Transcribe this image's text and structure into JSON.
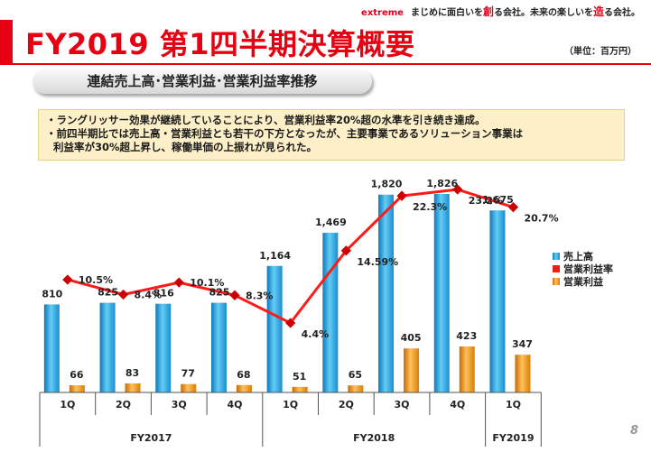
{
  "header": {
    "brand": "extreme",
    "tagline_a": "まじめに面白いを",
    "tagline_a_em": "創",
    "tagline_b": "る会社。未来の楽しいを",
    "tagline_b_em": "造",
    "tagline_c": "る会社。"
  },
  "page": {
    "title": "FY2019 第1四半期決算概要",
    "unit": "（単位：百万円）",
    "subtitle": "連結売上高･営業利益･営業利益率推移",
    "page_number": "8"
  },
  "notes": {
    "line1": "・ラングリッサー効果が継続していることにより、営業利益率20%超の水準を引き続き達成。",
    "line2": "・前四半期比では売上高・営業利益とも若干の下方となったが、主要事業であるソリューション事業は",
    "line3": "利益率が30%超上昇し、稼働単価の上振れが見られた。"
  },
  "colors": {
    "brand_red": "#e60012",
    "sales_bar": "#29a8e0",
    "profit_bar": "#f29a1d",
    "margin_line": "#ff1a1a",
    "margin_marker": "#cc0000"
  },
  "chart_data": {
    "type": "bar",
    "categories": [
      "1Q",
      "2Q",
      "3Q",
      "4Q",
      "1Q",
      "2Q",
      "3Q",
      "4Q",
      "1Q"
    ],
    "groups": [
      {
        "label": "FY2017",
        "count": 4
      },
      {
        "label": "FY2018",
        "count": 4
      },
      {
        "label": "FY2019",
        "count": 1
      }
    ],
    "series": [
      {
        "name": "売上高",
        "type": "bar",
        "values": [
          810,
          825,
          816,
          825,
          1164,
          1469,
          1820,
          1826,
          1675
        ],
        "labels": [
          "810",
          "825",
          "816",
          "825",
          "1,164",
          "1,469",
          "1,820",
          "1,826",
          "1,675"
        ]
      },
      {
        "name": "営業利益率",
        "type": "line",
        "values": [
          10.5,
          8.4,
          10.1,
          8.3,
          4.4,
          14.59,
          22.3,
          23.2,
          20.7
        ],
        "labels": [
          "10.5%",
          "8.4%",
          "10.1%",
          "8.3%",
          "4.4%",
          "14.59%",
          "22.3%",
          "23.2%",
          "20.7%"
        ]
      },
      {
        "name": "営業利益",
        "type": "bar",
        "values": [
          66,
          83,
          77,
          68,
          51,
          65,
          405,
          423,
          347
        ],
        "labels": [
          "66",
          "83",
          "77",
          "68",
          "51",
          "65",
          "405",
          "423",
          "347"
        ]
      }
    ],
    "legend": [
      "売上高",
      "営業利益率",
      "営業利益"
    ],
    "legend_position": "right",
    "grid": false
  }
}
